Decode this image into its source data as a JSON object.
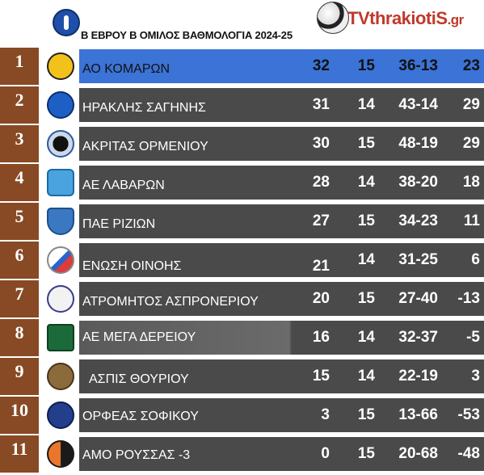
{
  "header": {
    "title": "Β ΕΒΡΟΥ Β ΟΜΙΛΟΣ ΒΑΘΜΟΛΟΓΙΑ 2024-25",
    "brand_main": "TVthrakiotiS",
    "brand_tld": ".gr",
    "league_logo_icon": "league-crest-icon",
    "brand_icon": "soccer-ball-icon"
  },
  "colors": {
    "position_bg": "#874a24",
    "row_bg": "#4a4a4a",
    "highlight_bg": "#3b73d6",
    "brand_red": "#c0392b"
  },
  "standings": [
    {
      "pos": "1",
      "team": "ΑΟ ΚΟΜΑΡΩΝ",
      "points": "32",
      "played": "15",
      "goals": "36-13",
      "last": "23",
      "logo": "yellow-club-crest-icon"
    },
    {
      "pos": "2",
      "team": "ΗΡΑΚΛΗΣ ΣΑΓΗΝΗΣ",
      "points": "31",
      "played": "14",
      "goals": "43-14",
      "last": "29",
      "logo": "blue-h-crest-icon"
    },
    {
      "pos": "3",
      "team": "ΑΚΡΙΤΑΣ ΟΡΜΕΝΙΟΥ",
      "points": "30",
      "played": "15",
      "goals": "48-19",
      "last": "29",
      "logo": "ball-crest-icon"
    },
    {
      "pos": "4",
      "team": "ΑΕ ΛΑΒΑΡΩΝ",
      "points": "28",
      "played": "14",
      "goals": "38-20",
      "last": "18",
      "logo": "shield-crest-icon"
    },
    {
      "pos": "5",
      "team": "ΠΑΕ ΡΙΖΙΩΝ",
      "points": "27",
      "played": "15",
      "goals": "34-23",
      "last": "11",
      "logo": "blue-shield-crest-icon"
    },
    {
      "pos": "6",
      "team": "ΕΝΩΣΗ ΟΙΝΟΗΣ",
      "points": "21",
      "played": "14",
      "goals": "31-25",
      "last": "6",
      "logo": "flag-crest-icon"
    },
    {
      "pos": "7",
      "team": "ΑΤΡΟΜΗΤΟΣ ΑΣΠΡΟΝΕΡΙΟΥ",
      "points": "20",
      "played": "15",
      "goals": "27-40",
      "last": "-13",
      "logo": "white-round-crest-icon"
    },
    {
      "pos": "8",
      "team": "ΑΕ ΜΕΓΑ ΔΕΡΕΙΟΥ",
      "points": "16",
      "played": "14",
      "goals": "32-37",
      "last": "-5",
      "logo": "green-crest-icon"
    },
    {
      "pos": "9",
      "team": "ΑΣΠΙΣ ΘΟΥΡΙΟΥ",
      "points": "15",
      "played": "14",
      "goals": "22-19",
      "last": "3",
      "logo": "brown-round-crest-icon"
    },
    {
      "pos": "10",
      "team": "ΟΡΦΕΑΣ ΣΟΦΙΚΟΥ",
      "points": "3",
      "played": "15",
      "goals": "13-66",
      "last": "-53",
      "logo": "navy-crest-icon"
    },
    {
      "pos": "11",
      "team": "ΑΜΟ ΡΟΥΣΣΑΣ -3",
      "points": "0",
      "played": "15",
      "goals": "20-68",
      "last": "-48",
      "logo": "orange-crest-icon"
    }
  ]
}
